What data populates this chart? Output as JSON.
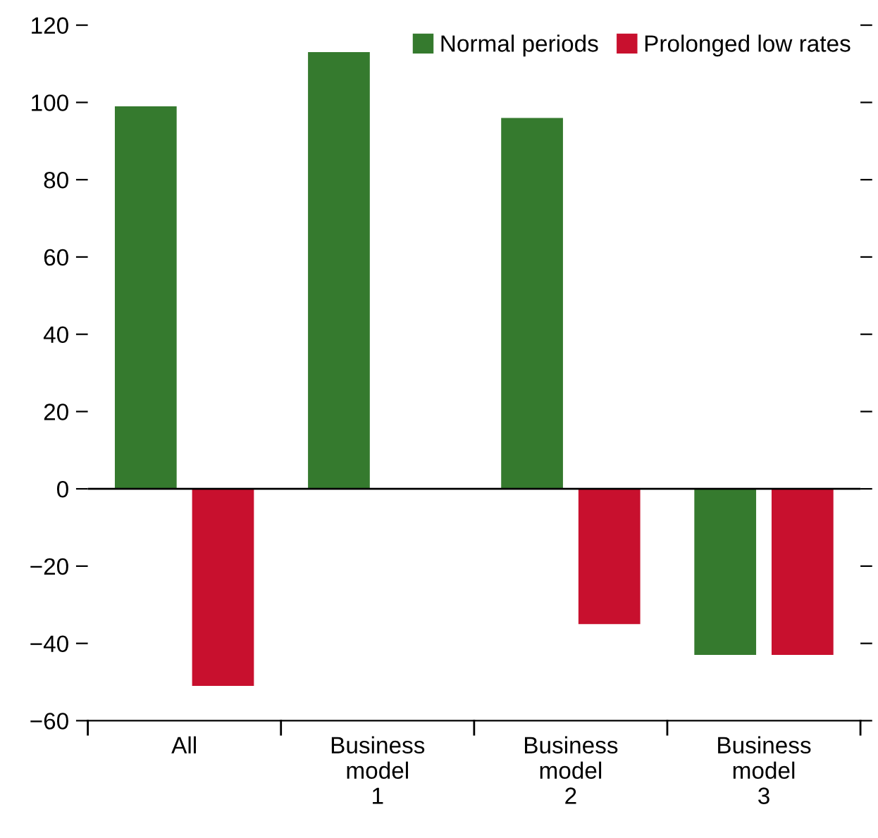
{
  "chart_data": {
    "type": "bar",
    "categories": [
      "All",
      "Business\nmodel\n1",
      "Business\nmodel\n2",
      "Business\nmodel\n3"
    ],
    "series": [
      {
        "name": "Normal periods",
        "color": "#357a2e",
        "values": [
          99,
          113,
          96,
          -43
        ]
      },
      {
        "name": "Prolonged low rates",
        "color": "#c8102e",
        "values": [
          -51,
          null,
          -35,
          -43
        ]
      }
    ],
    "ylim": [
      -60,
      120
    ],
    "yticks": [
      {
        "value": -60,
        "label": "−60"
      },
      {
        "value": -40,
        "label": "−40"
      },
      {
        "value": -20,
        "label": "−20"
      },
      0,
      20,
      40,
      60,
      80,
      100,
      120
    ],
    "ref_lines": [
      {
        "axis": "y",
        "value": 0,
        "color": "#000000"
      }
    ],
    "legend": "top right",
    "grid": false
  }
}
